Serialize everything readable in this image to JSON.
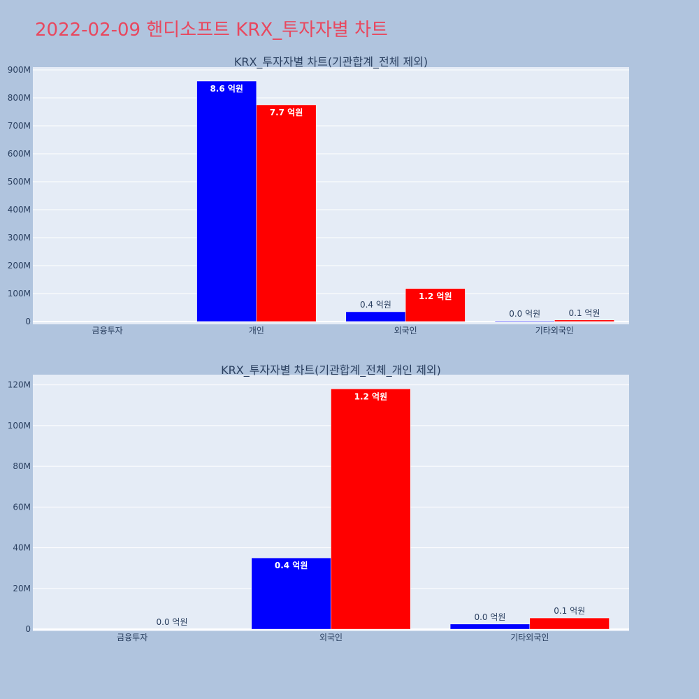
{
  "title": "2022-02-09 핸디소프트 KRX_투자자별 차트",
  "colors": {
    "background": "#b0c4de",
    "plot_bg": "#e5ecf6",
    "sell": "#0000ff",
    "buy": "#ff0000",
    "title": "#e8485f"
  },
  "chart_data": [
    {
      "type": "bar",
      "title": "KRX_투자자별 차트(기관합계_전체 제외)",
      "categories": [
        "금융투자",
        "개인",
        "외국인",
        "기타외국인"
      ],
      "series": [
        {
          "color": "#0000ff",
          "values": [
            0,
            860000000,
            35000000,
            2500000
          ],
          "labels": [
            "",
            "8.6 억원",
            "0.4 억원",
            "0.0 억원"
          ]
        },
        {
          "color": "#ff0000",
          "values": [
            0,
            775000000,
            118000000,
            5500000
          ],
          "labels": [
            "",
            "7.7 억원",
            "1.2 억원",
            "0.1 억원"
          ]
        }
      ],
      "ylim": [
        -10000000,
        910000000
      ],
      "yticks": [
        0,
        100000000,
        200000000,
        300000000,
        400000000,
        500000000,
        600000000,
        700000000,
        800000000,
        900000000
      ],
      "ytick_labels": [
        "0",
        "100M",
        "200M",
        "300M",
        "400M",
        "500M",
        "600M",
        "700M",
        "800M",
        "900M"
      ],
      "grid": true,
      "legend": "none"
    },
    {
      "type": "bar",
      "title": "KRX_투자자별 차트(기관합계_전체_개인 제외)",
      "categories": [
        "금융투자",
        "외국인",
        "기타외국인"
      ],
      "series": [
        {
          "color": "#0000ff",
          "values": [
            0,
            35000000,
            2500000
          ],
          "labels": [
            "",
            "0.4 억원",
            "0.0 억원"
          ]
        },
        {
          "color": "#ff0000",
          "values": [
            0,
            118000000,
            5500000
          ],
          "labels": [
            "0.0 억원",
            "1.2 억원",
            "0.1 억원"
          ]
        }
      ],
      "ylim": [
        -1000000,
        125000000
      ],
      "yticks": [
        0,
        20000000,
        40000000,
        60000000,
        80000000,
        100000000,
        120000000
      ],
      "ytick_labels": [
        "0",
        "20M",
        "40M",
        "60M",
        "80M",
        "100M",
        "120M"
      ],
      "grid": true,
      "legend": "none"
    }
  ]
}
